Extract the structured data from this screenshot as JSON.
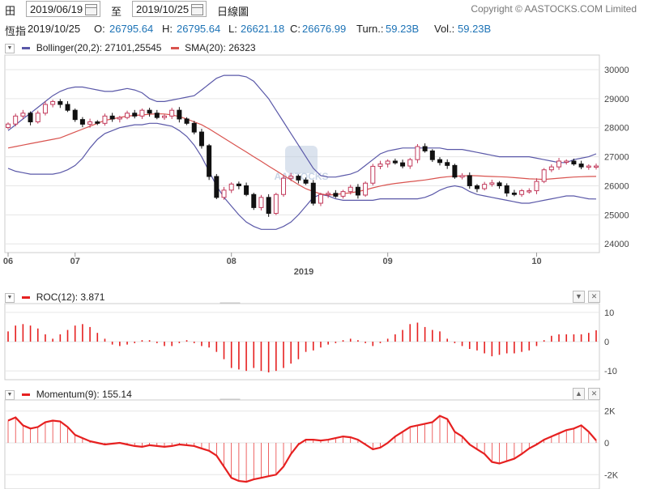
{
  "toolbar": {
    "cal_glyph": "田",
    "from_date": "2019/06/19",
    "to_label": "至",
    "to_date": "2019/10/25",
    "period": "日線圖",
    "copyright": "Copyright © AASTOCKS.COM Limited"
  },
  "info": {
    "name": "恆指",
    "date": "2019/10/25",
    "open_label": "O:",
    "open": "26795.64",
    "high_label": "H:",
    "high": "26795.64",
    "low_label": "L:",
    "low": "26621.18",
    "close_label": "C:",
    "close": "26676.99",
    "turn_label": "Turn.:",
    "turn": "59.23B",
    "vol_label": "Vol.:",
    "vol": "59.23B"
  },
  "watermark": "AASTOCKS",
  "colors": {
    "up": "#c23a5b",
    "down": "#111111",
    "bollinger": "#5a58a8",
    "sma": "#d9534f",
    "indicator": "#e62020",
    "grid": "#e6e6e6"
  },
  "chart_data": [
    {
      "type": "candlestick",
      "legend": [
        {
          "name": "Bollinger(20,2)",
          "value": "27101,25545"
        },
        {
          "name": "SMA(20)",
          "value": "26323"
        }
      ],
      "ylim": [
        23700,
        30500
      ],
      "yticks": [
        24000,
        25000,
        26000,
        27000,
        28000,
        29000,
        30000
      ],
      "xticks": [
        {
          "i": 0,
          "label": "06"
        },
        {
          "i": 9,
          "label": "07"
        },
        {
          "i": 30,
          "label": "08"
        },
        {
          "i": 51,
          "label": "09"
        },
        {
          "i": 71,
          "label": "10"
        }
      ],
      "year_label": "2019",
      "close": [
        28125,
        28400,
        28500,
        28200,
        28500,
        28800,
        28900,
        28800,
        28600,
        28280,
        28120,
        28200,
        28150,
        28400,
        28300,
        28350,
        28500,
        28400,
        28600,
        28500,
        28350,
        28400,
        28600,
        28300,
        28150,
        27850,
        27380,
        26320,
        25600,
        25850,
        26060,
        26000,
        25700,
        25250,
        25600,
        25050,
        25700,
        26260,
        26330,
        26200,
        26090,
        25400,
        25700,
        25740,
        25640,
        25800,
        25950,
        25680,
        26090,
        26670,
        26750,
        26850,
        26790,
        26680,
        26900,
        27350,
        27200,
        26900,
        26800,
        26700,
        26300,
        26350,
        26000,
        25900,
        26050,
        26100,
        26000,
        25750,
        25700,
        25830,
        25830,
        26150,
        26550,
        26650,
        26850,
        26850,
        26750,
        26650,
        26680,
        26680
      ],
      "bb_mid": [
        27300,
        27350,
        27400,
        27450,
        27500,
        27550,
        27600,
        27650,
        27750,
        27850,
        27950,
        28050,
        28150,
        28250,
        28300,
        28350,
        28400,
        28420,
        28440,
        28460,
        28480,
        28470,
        28440,
        28380,
        28300,
        28200,
        28100,
        27960,
        27800,
        27640,
        27480,
        27320,
        27160,
        27000,
        26840,
        26680,
        26520,
        26360,
        26200,
        26040,
        25900,
        25800,
        25720,
        25680,
        25700,
        25730,
        25760,
        25800,
        25860,
        25930,
        25990,
        26040,
        26080,
        26110,
        26140,
        26170,
        26200,
        26240,
        26280,
        26310,
        26330,
        26340,
        26350,
        26345,
        26330,
        26320,
        26310,
        26300,
        26280,
        26260,
        26240,
        26230,
        26220,
        26240,
        26260,
        26280,
        26300,
        26310,
        26320,
        26323
      ],
      "bb_upper": [
        27900,
        28100,
        28300,
        28500,
        28700,
        28900,
        29100,
        29250,
        29350,
        29400,
        29400,
        29350,
        29300,
        29250,
        29250,
        29300,
        29350,
        29300,
        29200,
        29000,
        28900,
        28900,
        28950,
        29000,
        29050,
        29100,
        29300,
        29500,
        29700,
        29800,
        29800,
        29800,
        29750,
        29600,
        29300,
        29000,
        28600,
        28200,
        27800,
        27400,
        27000,
        26600,
        26350,
        26300,
        26300,
        26350,
        26400,
        26500,
        26700,
        26900,
        27100,
        27200,
        27250,
        27300,
        27300,
        27300,
        27300,
        27300,
        27300,
        27250,
        27250,
        27250,
        27200,
        27150,
        27100,
        27050,
        27000,
        27000,
        27000,
        27000,
        27000,
        26950,
        26900,
        26850,
        26800,
        26800,
        26900,
        26950,
        27000,
        27100
      ],
      "bb_lower": [
        26600,
        26500,
        26450,
        26400,
        26400,
        26400,
        26400,
        26450,
        26550,
        26700,
        26950,
        27300,
        27600,
        27800,
        27900,
        28000,
        28050,
        28100,
        28100,
        28150,
        28150,
        28100,
        28050,
        27900,
        27700,
        27400,
        27000,
        26500,
        26000,
        25600,
        25300,
        25000,
        24750,
        24600,
        24500,
        24500,
        24500,
        24600,
        24750,
        25000,
        25300,
        25600,
        25700,
        25650,
        25550,
        25500,
        25500,
        25500,
        25500,
        25500,
        25550,
        25550,
        25550,
        25550,
        25550,
        25550,
        25600,
        25700,
        25850,
        25950,
        26000,
        25950,
        25800,
        25700,
        25650,
        25600,
        25550,
        25500,
        25450,
        25400,
        25400,
        25450,
        25500,
        25550,
        25600,
        25650,
        25650,
        25600,
        25550,
        25545
      ]
    },
    {
      "type": "bar",
      "legend": [
        {
          "name": "ROC(12)",
          "value": "3.871"
        }
      ],
      "ylim": [
        -13,
        13
      ],
      "yticks": [
        10,
        0,
        -10
      ],
      "values": [
        3.5,
        5.5,
        6,
        5.5,
        4.5,
        2.5,
        1,
        2.5,
        4,
        5.5,
        6,
        5,
        3,
        1,
        -1,
        -1.5,
        -1,
        -0.5,
        0.5,
        0.5,
        -0.5,
        -1.5,
        -1.5,
        -0.5,
        0.5,
        -0.5,
        -1.5,
        -2,
        -3.5,
        -6,
        -9,
        -9.5,
        -10,
        -9,
        -10,
        -10.5,
        -10,
        -9,
        -7.5,
        -6,
        -3.5,
        -3,
        -2,
        -1,
        -0.5,
        0.5,
        1,
        0.5,
        -0.5,
        -1.5,
        -0.5,
        1,
        2.5,
        4,
        6,
        6.5,
        5,
        4,
        3.5,
        1,
        -0.5,
        -1.5,
        -2.5,
        -3,
        -4,
        -5,
        -4.5,
        -4,
        -4,
        -3.5,
        -3,
        -1.5,
        0.5,
        2,
        2.5,
        2.5,
        2.5,
        2.5,
        3,
        3.87
      ]
    },
    {
      "type": "bar",
      "legend": [
        {
          "name": "Momentum(9)",
          "value": "155.14"
        }
      ],
      "ylim": [
        -2700,
        2700
      ],
      "yticks": [
        {
          "v": 2000,
          "label": "2K"
        },
        {
          "v": 0,
          "label": "0"
        },
        {
          "v": -2000,
          "label": "-2K"
        }
      ],
      "values": [
        1400,
        1600,
        1100,
        900,
        1000,
        1300,
        1400,
        1350,
        1000,
        500,
        300,
        100,
        0,
        -100,
        -50,
        0,
        -100,
        -200,
        -250,
        -150,
        -200,
        -250,
        -200,
        -100,
        -150,
        -200,
        -350,
        -500,
        -800,
        -1500,
        -2200,
        -2400,
        -2450,
        -2300,
        -2200,
        -2100,
        -2000,
        -1500,
        -700,
        -100,
        200,
        200,
        150,
        200,
        300,
        400,
        350,
        200,
        -100,
        -400,
        -300,
        0,
        400,
        700,
        1000,
        1100,
        1200,
        1300,
        1700,
        1500,
        700,
        400,
        -100,
        -400,
        -700,
        -1200,
        -1300,
        -1150,
        -1000,
        -700,
        -350,
        -100,
        200,
        400,
        600,
        800,
        900,
        1100,
        700,
        155
      ]
    }
  ]
}
